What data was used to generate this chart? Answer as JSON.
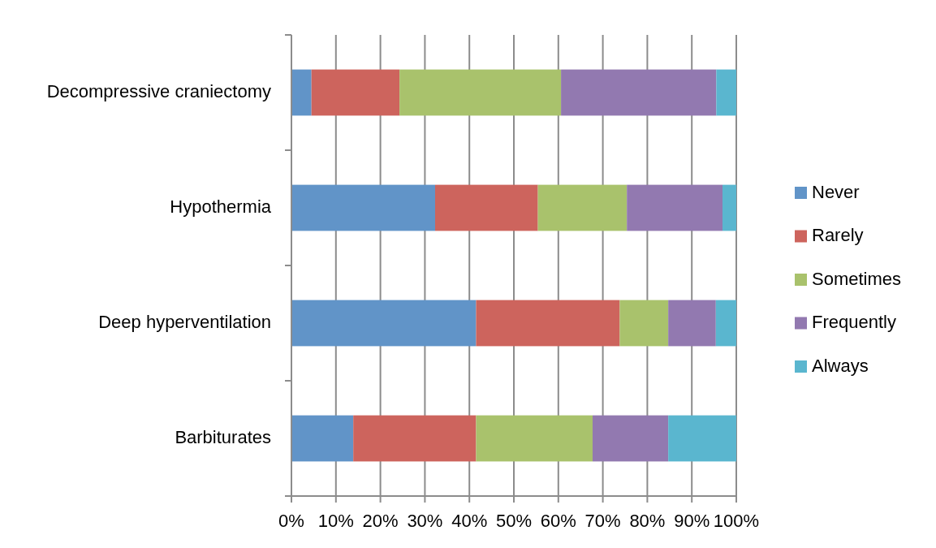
{
  "chart_data": {
    "type": "bar",
    "orientation": "horizontal",
    "stacked": true,
    "categories": [
      "Decompressive craniectomy",
      "Hypothermia",
      "Deep hyperventilation",
      "Barbiturates"
    ],
    "series": [
      {
        "name": "Never",
        "color": "#6194c8",
        "values": [
          4.5,
          32.3,
          41.5,
          13.9
        ]
      },
      {
        "name": "Rarely",
        "color": "#cd645d",
        "values": [
          19.8,
          23.1,
          32.3,
          27.6
        ]
      },
      {
        "name": "Sometimes",
        "color": "#a9c26c",
        "values": [
          36.3,
          20.0,
          10.9,
          26.2
        ]
      },
      {
        "name": "Frequently",
        "color": "#9279b0",
        "values": [
          34.9,
          21.5,
          10.7,
          17.0
        ]
      },
      {
        "name": "Always",
        "color": "#5ab6cf",
        "values": [
          4.5,
          3.1,
          4.6,
          15.3
        ]
      }
    ],
    "xlim": [
      0,
      100
    ],
    "xticks": [
      {
        "value": 0,
        "label": "0%"
      },
      {
        "value": 10,
        "label": "10%"
      },
      {
        "value": 20,
        "label": "20%"
      },
      {
        "value": 30,
        "label": "30%"
      },
      {
        "value": 40,
        "label": "40%"
      },
      {
        "value": 50,
        "label": "50%"
      },
      {
        "value": 60,
        "label": "60%"
      },
      {
        "value": 70,
        "label": "70%"
      },
      {
        "value": 80,
        "label": "80%"
      },
      {
        "value": 90,
        "label": "90%"
      },
      {
        "value": 100,
        "label": "100%"
      }
    ],
    "grid": "x",
    "legend": "right"
  }
}
